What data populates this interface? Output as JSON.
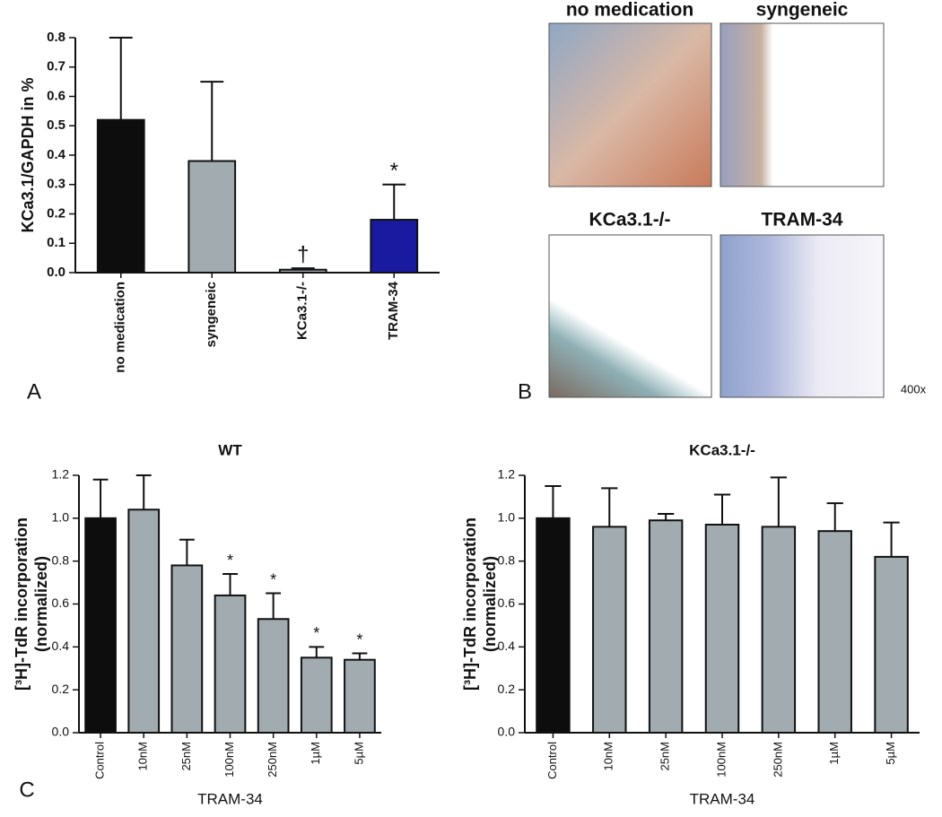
{
  "chart_data": [
    {
      "type": "bar",
      "ylabel": [
        "KCa3.1/GAPDH in %"
      ],
      "categories": [
        "no medication",
        "syngeneic",
        "KCa3.1-/-",
        "TRAM-34"
      ],
      "values": [
        0.52,
        0.38,
        0.01,
        0.18
      ],
      "errors": [
        0.28,
        0.27,
        0.005,
        0.12
      ],
      "colors": [
        "#0d0d0d",
        "#a2abb0",
        "#a2abb0",
        "#1a1aa0"
      ],
      "ylim": [
        0,
        0.8
      ],
      "yticks": [
        {
          "value": 0,
          "label": "0.0"
        },
        0.1,
        0.2,
        0.3,
        0.4,
        0.5,
        0.6,
        0.7,
        0.8
      ],
      "annotations": [
        {
          "index": 2,
          "text": "†"
        },
        {
          "index": 3,
          "text": "*"
        }
      ],
      "panel": "A"
    },
    {
      "type": "bar",
      "title": "WT",
      "ylabel": [
        "[³H]-TdR incorporation",
        "(normalized)"
      ],
      "xlabel": "TRAM-34",
      "categories": [
        "Control",
        "10nM",
        "25nM",
        "100nM",
        "250nM",
        "1µM",
        "5µM"
      ],
      "values": [
        1.0,
        1.04,
        0.78,
        0.64,
        0.53,
        0.35,
        0.34
      ],
      "errors": [
        0.18,
        0.16,
        0.12,
        0.1,
        0.12,
        0.05,
        0.03
      ],
      "colors": [
        "#0d0d0d",
        "#a2abb0",
        "#a2abb0",
        "#a2abb0",
        "#a2abb0",
        "#a2abb0",
        "#a2abb0"
      ],
      "ylim": [
        0,
        1.2
      ],
      "yticks": [
        {
          "value": 0,
          "label": "0.0"
        },
        0.2,
        0.4,
        0.6,
        0.8,
        {
          "value": 1,
          "label": "1.0"
        },
        1.2
      ],
      "annotations": [
        {
          "index": 3,
          "text": "*"
        },
        {
          "index": 4,
          "text": "*"
        },
        {
          "index": 5,
          "text": "*"
        },
        {
          "index": 6,
          "text": "*"
        }
      ],
      "panel": "C"
    },
    {
      "type": "bar",
      "title": "KCa3.1-/-",
      "ylabel": [
        "[³H]-TdR incorporation",
        "(normalized)"
      ],
      "xlabel": "TRAM-34",
      "categories": [
        "Control",
        "10nM",
        "25nM",
        "100nM",
        "250nM",
        "1µM",
        "5µM"
      ],
      "values": [
        1.0,
        0.96,
        0.99,
        0.97,
        0.96,
        0.94,
        0.82
      ],
      "errors": [
        0.15,
        0.18,
        0.03,
        0.14,
        0.23,
        0.13,
        0.16
      ],
      "colors": [
        "#0d0d0d",
        "#a2abb0",
        "#a2abb0",
        "#a2abb0",
        "#a2abb0",
        "#a2abb0",
        "#a2abb0"
      ],
      "ylim": [
        0,
        1.2
      ],
      "yticks": [
        {
          "value": 0,
          "label": "0.0"
        },
        0.2,
        0.4,
        0.6,
        0.8,
        {
          "value": 1,
          "label": "1.0"
        },
        1.2
      ]
    }
  ],
  "panel_b": {
    "panel": "B",
    "labels": [
      "no medication",
      "syngeneic",
      "KCa3.1-/-",
      "TRAM-34"
    ],
    "magnification": "400x"
  }
}
